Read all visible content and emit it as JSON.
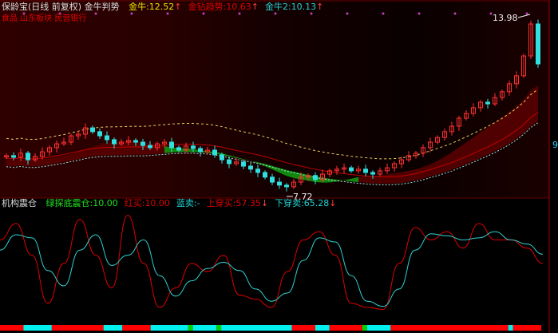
{
  "header": {
    "title": "保龄宝(日线 前复权) 金牛判势",
    "items": [
      {
        "label": "金牛:",
        "value": "12.52",
        "arrow": "↑",
        "color": "#e8e000"
      },
      {
        "label": "金钻趋势:",
        "value": "10.63",
        "arrow": "↑",
        "color": "#e00000"
      },
      {
        "label": "金牛2:",
        "value": "10.13",
        "arrow": "↑",
        "color": "#20d0d0"
      }
    ],
    "tags": "食品 山东板块 民营银行"
  },
  "subheader": {
    "title": "机构震仓",
    "items": [
      {
        "label": "绿探底震仓:",
        "value": "10.00",
        "arrow": "",
        "color": "#20e020"
      },
      {
        "label": "红买:",
        "value": "10.00",
        "arrow": "",
        "color": "#e00000"
      },
      {
        "label": "蓝卖:",
        "value": "-",
        "arrow": "",
        "color": "#20d0d0"
      },
      {
        "label": "上穿买:",
        "value": "57.35",
        "arrow": "↓",
        "color": "#e00000"
      },
      {
        "label": "下穿卖:",
        "value": "65.28",
        "arrow": "↓",
        "color": "#20d0d0"
      }
    ]
  },
  "right_axis_label": "9",
  "colors": {
    "up": "#ff3030",
    "down": "#30e0e0",
    "upper_band": "#e8d060",
    "lower_line": "#a0e0e0",
    "bull_fill": "#10a010",
    "bear_fill": "#5a0000",
    "osc_fast": "#e00000",
    "osc_slow": "#30d0d0"
  },
  "chart_data": [
    {
      "type": "candlestick",
      "annotations": [
        {
          "text": "13.98",
          "kind": "high"
        },
        {
          "text": "7.72",
          "kind": "low"
        }
      ],
      "closes": [
        8.91,
        8.85,
        9.0,
        8.76,
        8.88,
        9.05,
        9.2,
        9.34,
        9.4,
        9.63,
        9.69,
        9.92,
        9.78,
        9.63,
        9.49,
        9.34,
        9.4,
        9.46,
        9.4,
        9.28,
        9.2,
        9.34,
        9.4,
        9.2,
        9.11,
        9.26,
        9.17,
        9.05,
        9.11,
        8.94,
        8.76,
        8.62,
        8.68,
        8.53,
        8.42,
        8.3,
        8.13,
        7.95,
        7.84,
        7.78,
        7.95,
        8.13,
        8.19,
        8.04,
        8.24,
        8.36,
        8.42,
        8.47,
        8.36,
        8.42,
        8.3,
        8.24,
        8.36,
        8.47,
        8.62,
        8.76,
        8.91,
        9.0,
        9.2,
        9.4,
        9.57,
        9.78,
        9.98,
        10.27,
        10.44,
        10.65,
        10.85,
        10.79,
        11.02,
        11.23,
        11.52,
        11.81,
        12.53,
        13.69,
        12.24
      ],
      "ylim": [
        7.3,
        14.2
      ]
    },
    {
      "type": "line",
      "ylim": [
        0,
        100
      ],
      "fast": [
        70,
        86,
        55,
        8,
        47,
        90,
        55,
        23,
        94,
        47,
        4,
        23,
        47,
        39,
        55,
        16,
        12,
        4,
        39,
        70,
        78,
        55,
        8,
        4,
        2,
        47,
        82,
        70,
        78,
        62,
        86,
        70,
        70,
        62,
        47
      ],
      "slow": [
        60,
        75,
        72,
        40,
        25,
        60,
        75,
        45,
        55,
        70,
        35,
        15,
        30,
        42,
        48,
        40,
        22,
        10,
        18,
        50,
        72,
        68,
        35,
        10,
        5,
        22,
        60,
        76,
        74,
        70,
        72,
        78,
        70,
        66,
        56
      ],
      "signal_bar": [
        {
          "state": "red",
          "bars": 5
        },
        {
          "state": "cyan",
          "bars": 6
        },
        {
          "state": "red",
          "bars": 11
        },
        {
          "state": "cyan",
          "bars": 4
        },
        {
          "state": "red",
          "bars": 6
        },
        {
          "state": "cyan",
          "bars": 8
        },
        {
          "state": "green",
          "bars": 1
        },
        {
          "state": "cyan",
          "bars": 5
        },
        {
          "state": "green",
          "bars": 1
        },
        {
          "state": "cyan",
          "bars": 15
        },
        {
          "state": "red",
          "bars": 5
        },
        {
          "state": "cyan",
          "bars": 3
        },
        {
          "state": "red",
          "bars": 7
        },
        {
          "state": "green",
          "bars": 1
        },
        {
          "state": "cyan",
          "bars": 5
        },
        {
          "state": "red",
          "bars": 25
        },
        {
          "state": "cyan",
          "bars": 1
        },
        {
          "state": "red",
          "bars": 6
        }
      ]
    }
  ]
}
